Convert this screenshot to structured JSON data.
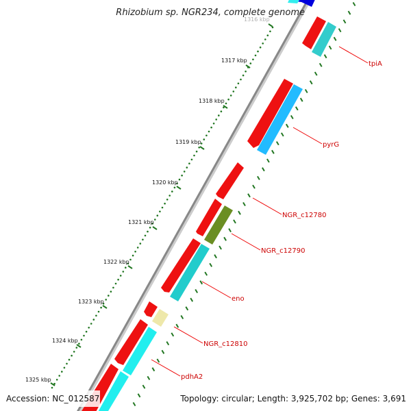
{
  "title": "Rhizobium sp. NGR234, complete genome",
  "footer": {
    "accession": "Accession: NC_012587",
    "topology": "Topology: circular; Length: 3,925,702 bp; Genes: 3,691"
  },
  "ticks": [
    "1316 kbp",
    "1317 kbp",
    "1318 kbp",
    "1319 kbp",
    "1320 kbp",
    "1321 kbp",
    "1322 kbp",
    "1323 kbp",
    "1324 kbp",
    "1325 kbp"
  ],
  "genes": [
    {
      "name": "tpiA",
      "product_color": "#33cccc"
    },
    {
      "name": "pyrG",
      "product_color": "#33bbee"
    },
    {
      "name": "NGR_c12780",
      "product_color": ""
    },
    {
      "name": "NGR_c12790",
      "product_color": "#6b8e23"
    },
    {
      "name": "eno",
      "product_color": "#33cccc"
    },
    {
      "name": "NGR_c12810",
      "product_color": "#eee8aa"
    },
    {
      "name": "pdhA2",
      "product_color": "#33eeee"
    }
  ],
  "colors": {
    "cds": "#ee1111",
    "backbone": "#888888",
    "tick": "#227722",
    "label_line": "#ee0000"
  }
}
